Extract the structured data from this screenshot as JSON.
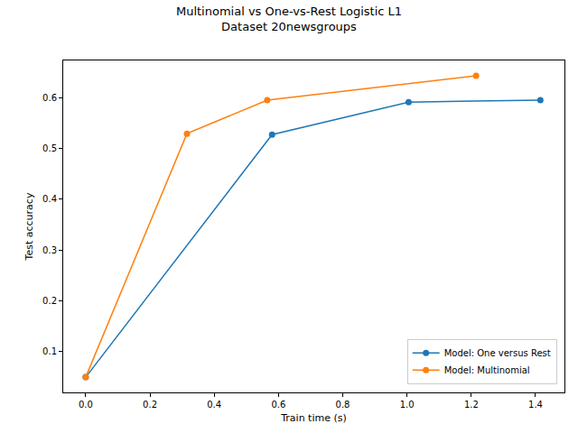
{
  "chart_data": {
    "type": "line",
    "title": "Multinomial vs One-vs-Rest Logistic L1",
    "subtitle": "Dataset 20newsgroups",
    "x_label": "Train time (s)",
    "y_label": "Test accuracy",
    "marker": "circle",
    "line_style": "solid",
    "grid": false,
    "legend": "lower right",
    "series": [
      {
        "name": "Model: One versus Rest",
        "color": "#1f77b4",
        "x": [
          0.0,
          0.58,
          1.005,
          1.415
        ],
        "values": [
          0.05,
          0.527,
          0.591,
          0.595
        ]
      },
      {
        "name": "Model: Multinomial",
        "color": "#ff7f0e",
        "x": [
          0.0,
          0.315,
          0.565,
          1.215
        ],
        "values": [
          0.05,
          0.529,
          0.595,
          0.643
        ]
      }
    ],
    "xlim": [
      -0.07,
      1.49
    ],
    "xticks": [
      {
        "value": 0,
        "label": "0.0"
      },
      0.2,
      0.4,
      0.6,
      0.8,
      {
        "value": 1,
        "label": "1.0"
      },
      1.2,
      1.4
    ],
    "ylim": [
      0.02,
      0.673
    ],
    "yticks": [
      0.1,
      0.2,
      0.3,
      0.4,
      0.5,
      0.6
    ]
  }
}
